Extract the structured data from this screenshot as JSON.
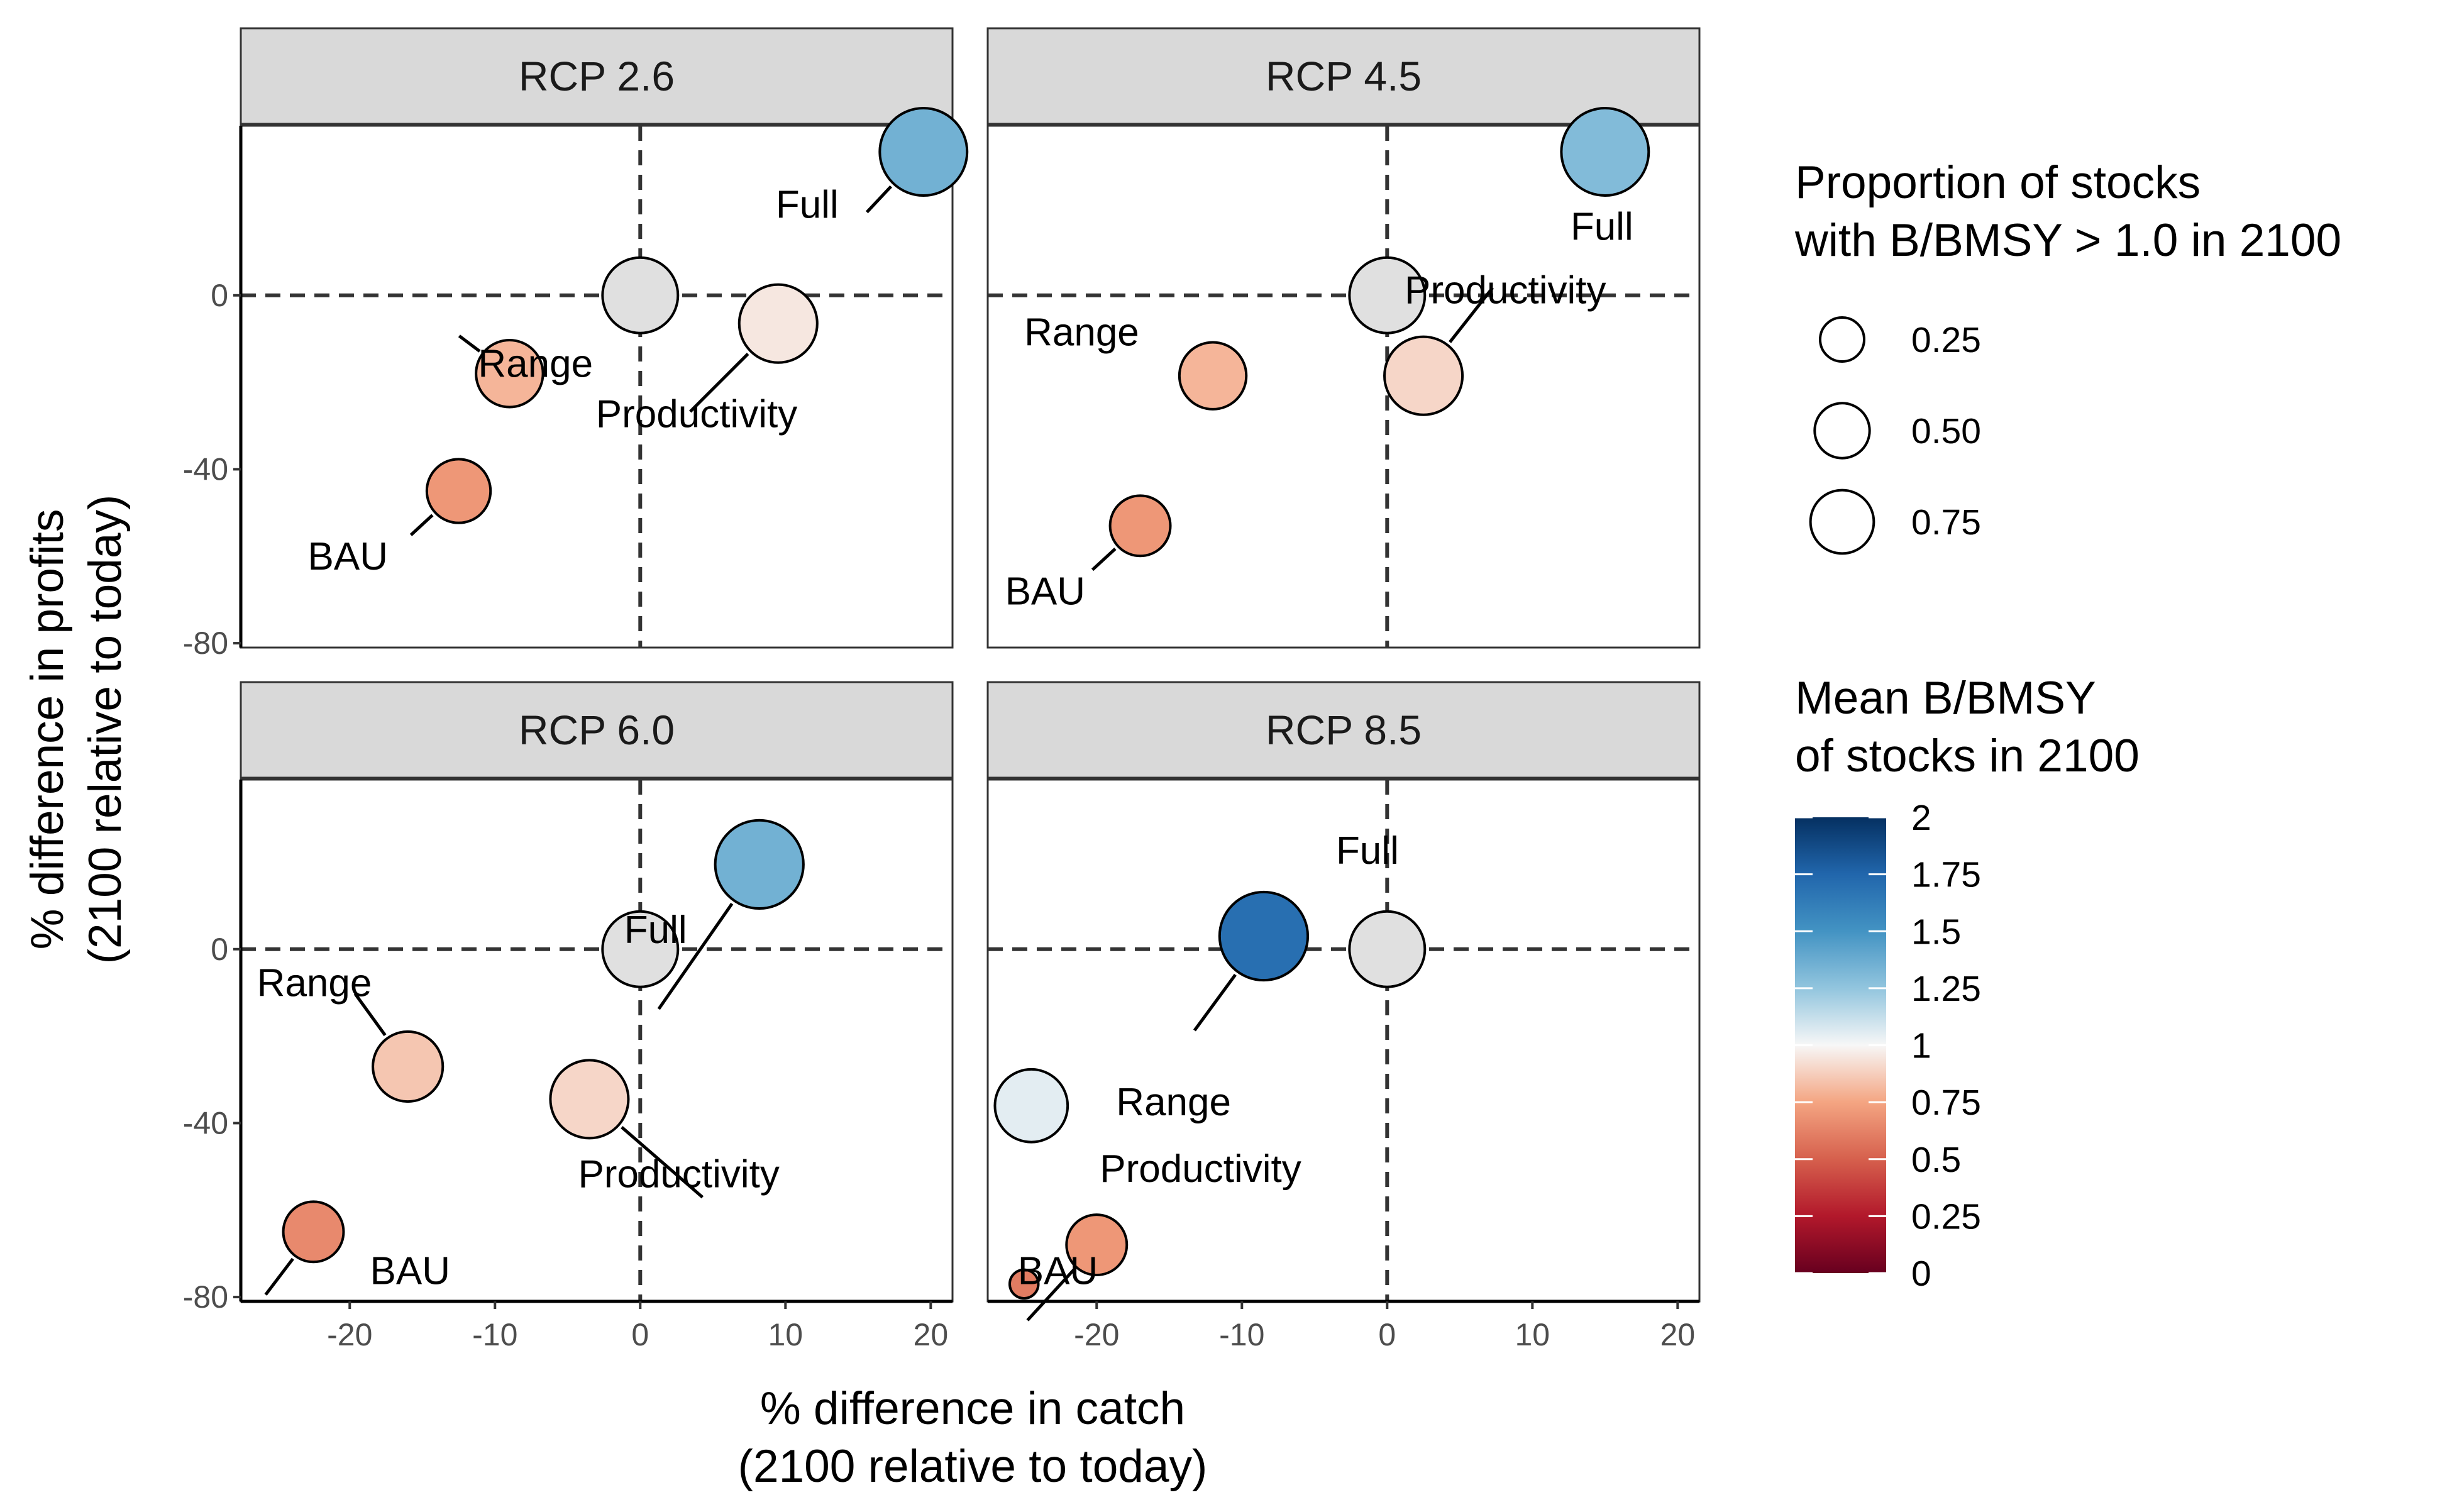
{
  "chart_data": {
    "type": "scatter",
    "xlabel": [
      "% difference in catch",
      "(2100 relative to today)"
    ],
    "ylabel": [
      "% difference in profits",
      "(2100 relative to today)"
    ],
    "xlim": [
      -27.5,
      21.5
    ],
    "ylim": [
      -81,
      39
    ],
    "x_ticks": [
      -20,
      -10,
      0,
      10,
      20
    ],
    "x_tick_labels": [
      "-20",
      "-10",
      "0",
      "10",
      "20"
    ],
    "y_ticks": [
      -80,
      -40,
      0
    ],
    "y_tick_labels": [
      "-80",
      "-40",
      "0"
    ],
    "reference_lines": {
      "x": 0,
      "y": 0,
      "style": "dashed"
    },
    "grid": false,
    "facets": [
      {
        "label": "RCP 2.6",
        "points": [
          {
            "name": "Full",
            "x": 19.5,
            "y": 33,
            "proportion": 0.8,
            "mean_bbmsy": 1.35
          },
          {
            "name": "Range",
            "x": -9,
            "y": -18,
            "proportion": 0.4,
            "mean_bbmsy": 0.8
          },
          {
            "name": "Productivity",
            "x": 9.5,
            "y": -6.5,
            "proportion": 0.6,
            "mean_bbmsy": 0.95
          },
          {
            "name": "BAU",
            "x": -12.5,
            "y": -45,
            "proportion": 0.35,
            "mean_bbmsy": 0.7
          },
          {
            "name": "",
            "x": 0,
            "y": 0,
            "proportion": 0.55,
            "mean_bbmsy": null
          }
        ]
      },
      {
        "label": "RCP 4.5",
        "points": [
          {
            "name": "Full",
            "x": 15,
            "y": 33,
            "proportion": 0.8,
            "mean_bbmsy": 1.3
          },
          {
            "name": "Range",
            "x": -12,
            "y": -18.5,
            "proportion": 0.4,
            "mean_bbmsy": 0.8
          },
          {
            "name": "Productivity",
            "x": 2.5,
            "y": -18.5,
            "proportion": 0.6,
            "mean_bbmsy": 0.9
          },
          {
            "name": "BAU",
            "x": -17,
            "y": -53,
            "proportion": 0.3,
            "mean_bbmsy": 0.7
          },
          {
            "name": "",
            "x": 0,
            "y": 0,
            "proportion": 0.55,
            "mean_bbmsy": null
          }
        ]
      },
      {
        "label": "RCP 6.0",
        "points": [
          {
            "name": "Full",
            "x": 8.2,
            "y": 19.5,
            "proportion": 0.82,
            "mean_bbmsy": 1.35
          },
          {
            "name": "Range",
            "x": -16,
            "y": -27,
            "proportion": 0.45,
            "mean_bbmsy": 0.85
          },
          {
            "name": "Productivity",
            "x": -3.5,
            "y": -34.5,
            "proportion": 0.6,
            "mean_bbmsy": 0.9
          },
          {
            "name": "BAU",
            "x": -22.5,
            "y": -65,
            "proportion": 0.3,
            "mean_bbmsy": 0.65
          },
          {
            "name": "",
            "x": 0,
            "y": 0,
            "proportion": 0.55,
            "mean_bbmsy": null
          }
        ]
      },
      {
        "label": "RCP 8.5",
        "points": [
          {
            "name": "Full",
            "x": -8.5,
            "y": 3,
            "proportion": 0.82,
            "mean_bbmsy": 1.7
          },
          {
            "name": "Range",
            "x": -24.5,
            "y": -36,
            "proportion": 0.5,
            "mean_bbmsy": 1.05
          },
          {
            "name": "Productivity",
            "x": -20,
            "y": -68,
            "proportion": 0.3,
            "mean_bbmsy": 0.7
          },
          {
            "name": "BAU",
            "x": -25,
            "y": -77,
            "proportion": 0.02,
            "mean_bbmsy": 0.6
          },
          {
            "name": "",
            "x": 0,
            "y": 0,
            "proportion": 0.55,
            "mean_bbmsy": null
          }
        ]
      }
    ],
    "legends": {
      "size": {
        "title": [
          "Proportion of stocks",
          "with B/BMSY > 1.0 in 2100"
        ],
        "breaks": [
          0.25,
          0.5,
          0.75
        ],
        "labels": [
          "0.25",
          "0.50",
          "0.75"
        ]
      },
      "color": {
        "title": [
          "Mean B/BMSY",
          "of stocks in 2100"
        ],
        "breaks": [
          2,
          1.75,
          1.5,
          1.25,
          1,
          0.75,
          0.5,
          0.25,
          0
        ],
        "labels": [
          "2",
          "1.75",
          "1.5",
          "1.25",
          "1",
          "0.75",
          "0.5",
          "0.25",
          "0"
        ],
        "range": [
          0,
          2
        ],
        "palette": "RdBu"
      },
      "placement": "right"
    }
  }
}
